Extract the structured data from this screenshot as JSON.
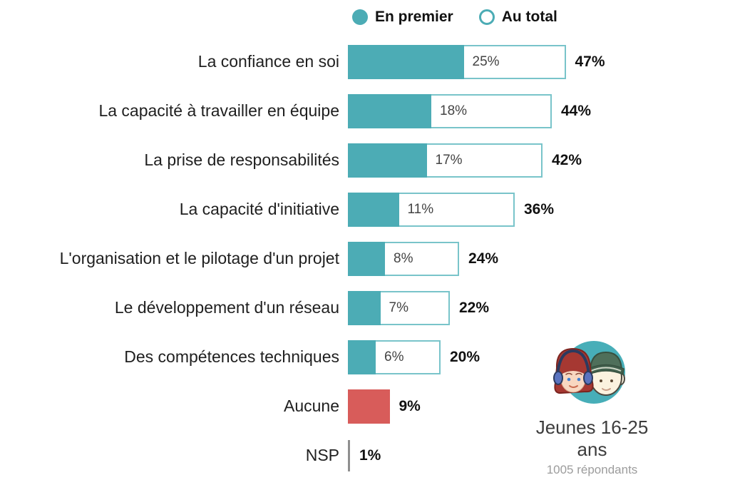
{
  "legend": {
    "items": [
      {
        "label": "En premier",
        "swatch": "filled"
      },
      {
        "label": "Au total",
        "swatch": "outline"
      }
    ]
  },
  "chart_data": {
    "type": "bar",
    "orientation": "horizontal",
    "unit": "%",
    "legend_position": "top",
    "categories": [
      "La confiance en soi",
      "La capacité à travailler en équipe",
      "La prise de responsabilités",
      "La capacité d'initiative",
      "L'organisation et le pilotage d'un projet",
      "Le développement d'un réseau",
      "Des compétences techniques"
    ],
    "series": [
      {
        "name": "En premier",
        "values": [
          25,
          18,
          17,
          11,
          8,
          7,
          6
        ],
        "color": "#4cacb5",
        "style": "filled"
      },
      {
        "name": "Au total",
        "values": [
          47,
          44,
          42,
          36,
          24,
          22,
          20
        ],
        "color": "#79c4ca",
        "style": "outline"
      }
    ],
    "extra_rows": [
      {
        "label": "Aucune",
        "value": 9,
        "display": "9%",
        "color": "#d85c5a"
      },
      {
        "label": "NSP",
        "value": 1,
        "display": "1%",
        "color": "#8f8f8f"
      }
    ],
    "xlim": [
      0,
      50
    ],
    "grid": false,
    "value_labels": "inside_segment_and_bar_end"
  },
  "footer": {
    "title": "Jeunes 16-25 ans",
    "subtitle": "1005 répondants"
  },
  "colors": {
    "first_fill": "#4cacb5",
    "total_border": "#79c4ca",
    "none_fill": "#d85c5a",
    "nsp_line": "#8f8f8f"
  }
}
